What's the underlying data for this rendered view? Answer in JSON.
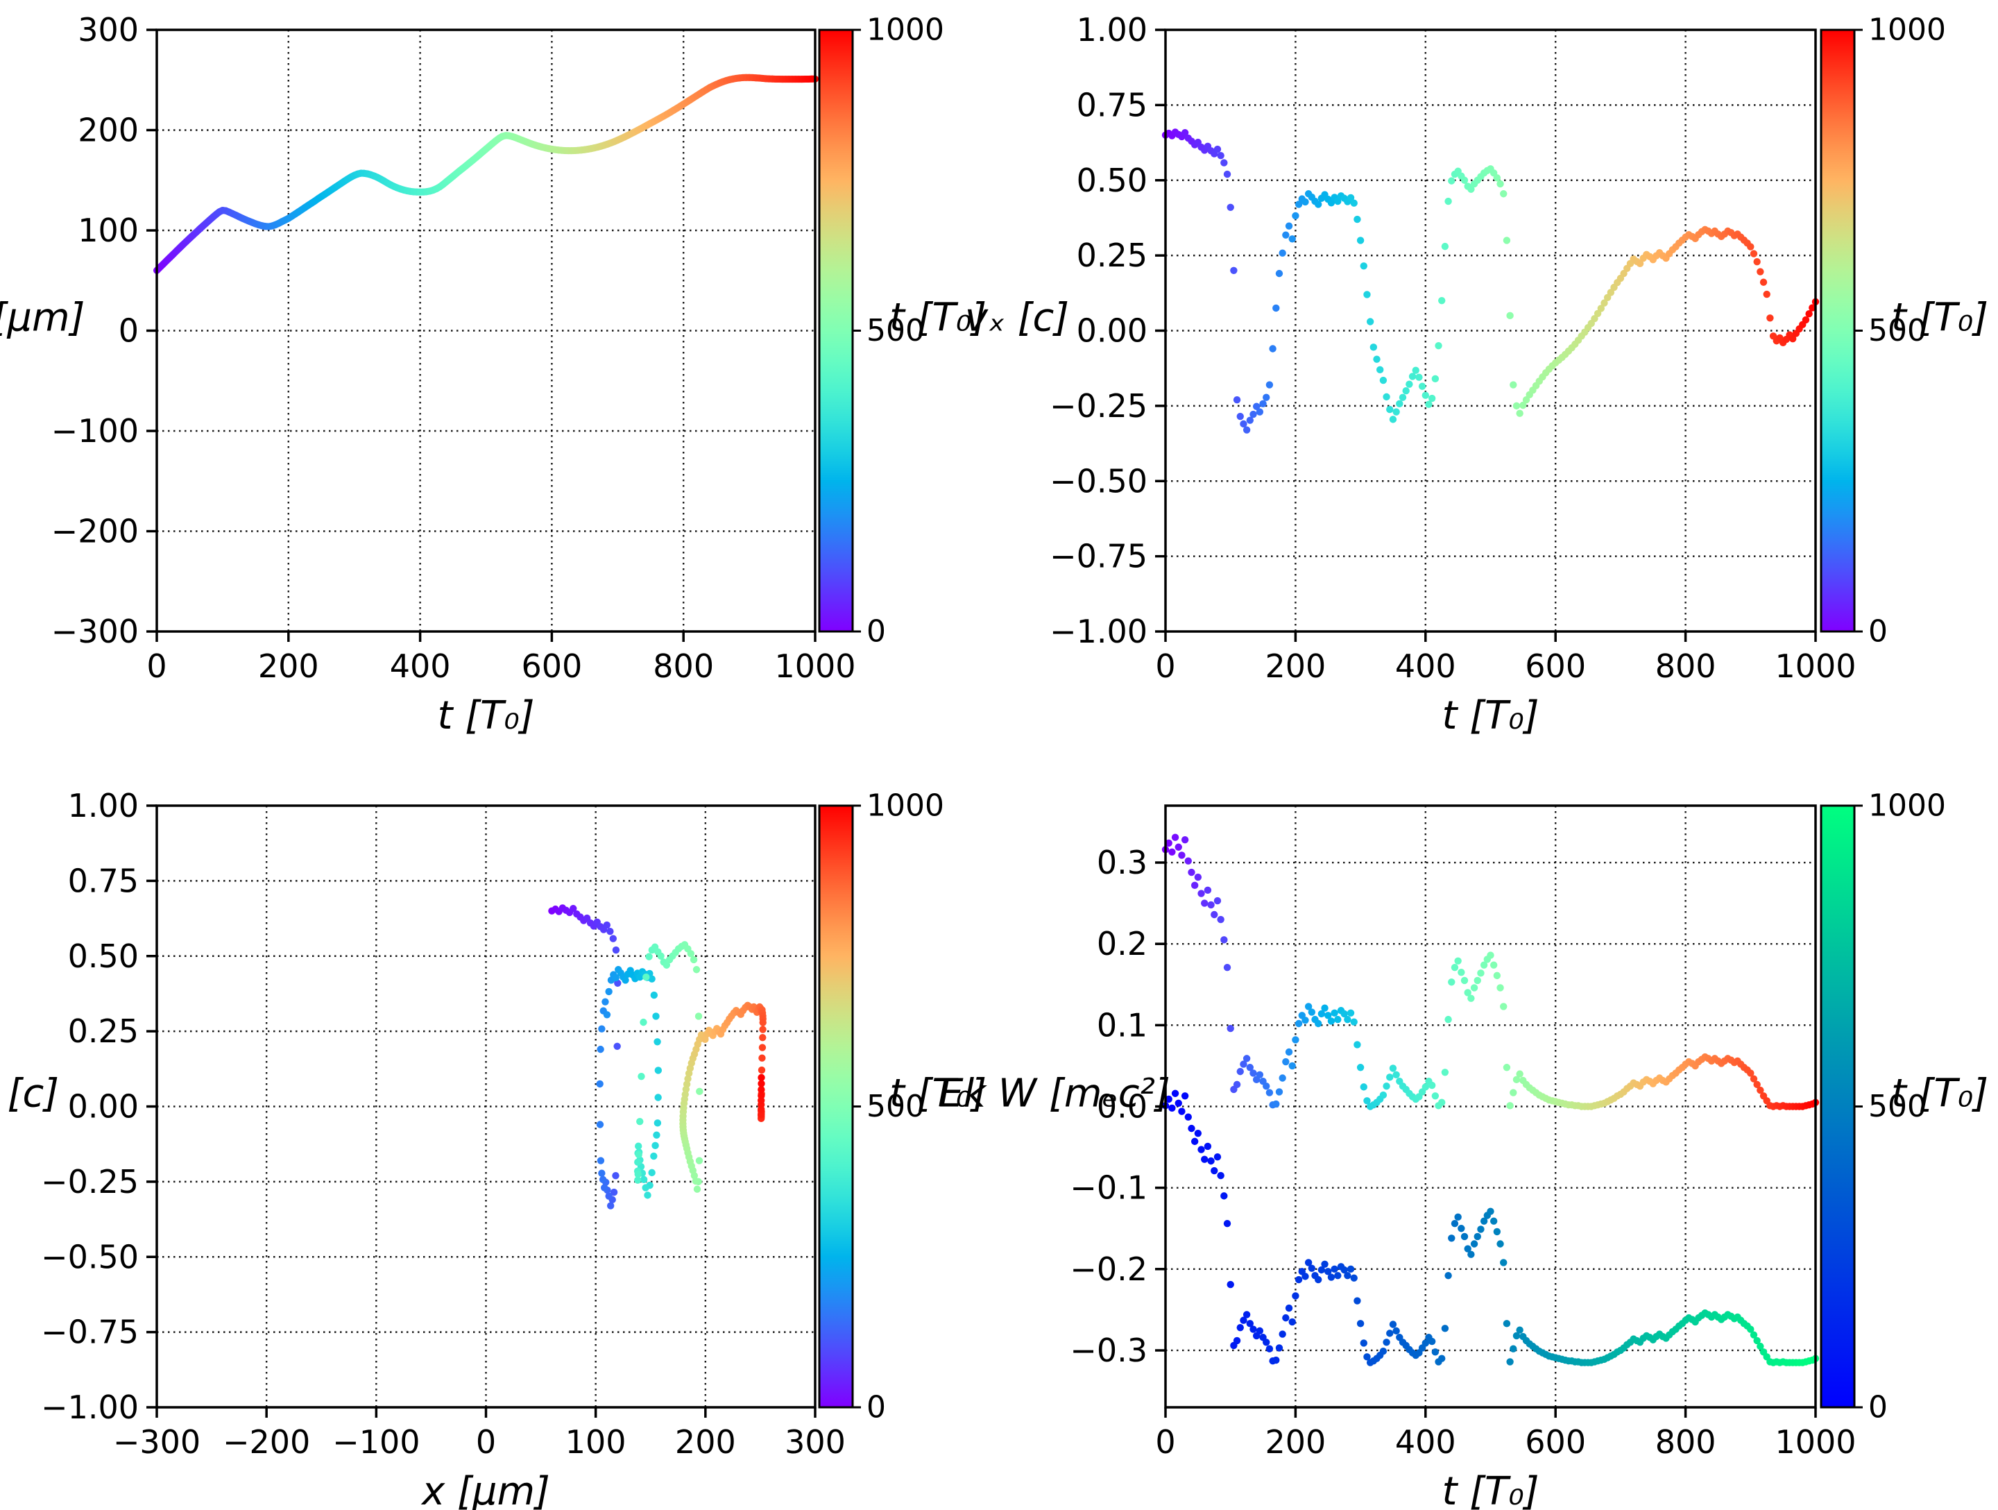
{
  "figure": {
    "background": "#ffffff",
    "spine_color": "#000000",
    "grid_color": "#000000",
    "colormaps": {
      "rainbow_hex_samples": [
        "#8000ff",
        "#1a96f3",
        "#00b4ec",
        "#80ffb4",
        "#e6ce74",
        "#ffb462",
        "#ff4f28",
        "#ff0000"
      ],
      "winter_hex_samples": [
        "#0000ff",
        "#0080bf",
        "#00ff80"
      ]
    }
  },
  "series_data": {
    "t": [
      0,
      5,
      10,
      15,
      20,
      25,
      30,
      35,
      40,
      45,
      50,
      55,
      60,
      65,
      70,
      75,
      80,
      85,
      90,
      95,
      100,
      105,
      110,
      115,
      120,
      125,
      130,
      135,
      140,
      145,
      150,
      155,
      160,
      165,
      170,
      175,
      180,
      185,
      190,
      195,
      200,
      205,
      210,
      215,
      220,
      225,
      230,
      235,
      240,
      245,
      250,
      255,
      260,
      265,
      270,
      275,
      280,
      285,
      290,
      295,
      300,
      305,
      310,
      315,
      320,
      325,
      330,
      335,
      340,
      345,
      350,
      355,
      360,
      365,
      370,
      375,
      380,
      385,
      390,
      395,
      400,
      405,
      410,
      415,
      420,
      425,
      430,
      435,
      440,
      445,
      450,
      455,
      460,
      465,
      470,
      475,
      480,
      485,
      490,
      495,
      500,
      505,
      510,
      515,
      520,
      525,
      530,
      535,
      540,
      545,
      550,
      555,
      560,
      565,
      570,
      575,
      580,
      585,
      590,
      595,
      600,
      605,
      610,
      615,
      620,
      625,
      630,
      635,
      640,
      645,
      650,
      655,
      660,
      665,
      670,
      675,
      680,
      685,
      690,
      695,
      700,
      705,
      710,
      715,
      720,
      725,
      730,
      735,
      740,
      745,
      750,
      755,
      760,
      765,
      770,
      775,
      780,
      785,
      790,
      795,
      800,
      805,
      810,
      815,
      820,
      825,
      830,
      835,
      840,
      845,
      850,
      855,
      860,
      865,
      870,
      875,
      880,
      885,
      890,
      895,
      900,
      905,
      910,
      915,
      920,
      925,
      930,
      935,
      940,
      945,
      950,
      955,
      960,
      965,
      970,
      975,
      980,
      985,
      990,
      995,
      1000
    ],
    "x": [
      60.0,
      63.3,
      66.5,
      69.8,
      73.0,
      76.2,
      79.5,
      82.7,
      85.9,
      89.0,
      92.1,
      95.2,
      98.2,
      101.3,
      104.3,
      107.2,
      110.2,
      113.1,
      115.9,
      118.5,
      120.0,
      119.6,
      118.2,
      116.7,
      115.2,
      113.6,
      112.0,
      110.6,
      109.2,
      107.9,
      106.6,
      105.5,
      104.6,
      104.0,
      103.8,
      104.4,
      105.5,
      107.0,
      108.7,
      110.3,
      112.0,
      114.1,
      116.2,
      118.4,
      120.6,
      122.8,
      125.0,
      127.1,
      129.3,
      131.6,
      133.8,
      135.9,
      138.1,
      140.3,
      142.5,
      144.7,
      146.9,
      149.1,
      151.2,
      153.2,
      154.9,
      156.2,
      157.0,
      156.9,
      156.4,
      155.5,
      154.3,
      152.9,
      151.2,
      149.3,
      147.3,
      145.5,
      143.9,
      142.5,
      141.3,
      140.3,
      139.5,
      138.9,
      138.5,
      138.3,
      138.2,
      138.3,
      138.6,
      139.2,
      140.2,
      141.6,
      143.5,
      145.9,
      148.6,
      151.3,
      154.0,
      156.7,
      159.4,
      162.0,
      164.6,
      167.3,
      170.0,
      172.7,
      175.5,
      178.3,
      181.1,
      183.9,
      186.7,
      189.4,
      191.9,
      193.8,
      194.6,
      194.4,
      193.6,
      192.5,
      191.2,
      189.9,
      188.6,
      187.3,
      186.1,
      185.0,
      184.0,
      183.1,
      182.3,
      181.6,
      181.0,
      180.5,
      180.1,
      179.8,
      179.6,
      179.5,
      179.5,
      179.6,
      179.8,
      180.1,
      180.5,
      181.0,
      181.6,
      182.3,
      183.1,
      184.0,
      185.0,
      186.1,
      187.3,
      188.6,
      190.0,
      191.5,
      193.0,
      194.6,
      196.3,
      198.0,
      199.7,
      201.4,
      203.2,
      205.0,
      206.8,
      208.6,
      210.4,
      212.2,
      214.0,
      215.9,
      217.8,
      219.8,
      221.8,
      223.8,
      225.9,
      228.0,
      230.1,
      232.2,
      234.3,
      236.4,
      238.5,
      240.5,
      242.5,
      244.1,
      245.6,
      247.0,
      248.3,
      249.4,
      250.3,
      251.0,
      251.6,
      252.0,
      252.3,
      252.4,
      252.4,
      252.3,
      252.1,
      251.9,
      251.6,
      251.3,
      251.1,
      251.0,
      250.9,
      250.9,
      250.8,
      250.8,
      250.8,
      250.8,
      250.8,
      250.8,
      250.8,
      250.9,
      250.9,
      251.0,
      251.0
    ],
    "vx": [
      0.65,
      0.656,
      0.648,
      0.66,
      0.652,
      0.645,
      0.658,
      0.64,
      0.63,
      0.618,
      0.626,
      0.61,
      0.6,
      0.613,
      0.598,
      0.588,
      0.603,
      0.582,
      0.558,
      0.52,
      0.41,
      0.2,
      -0.23,
      -0.285,
      -0.31,
      -0.33,
      -0.298,
      -0.278,
      -0.252,
      -0.27,
      -0.243,
      -0.222,
      -0.18,
      -0.06,
      0.075,
      0.19,
      0.258,
      0.318,
      0.348,
      0.305,
      0.382,
      0.42,
      0.438,
      0.428,
      0.455,
      0.444,
      0.43,
      0.42,
      0.44,
      0.452,
      0.437,
      0.425,
      0.443,
      0.43,
      0.448,
      0.44,
      0.429,
      0.442,
      0.424,
      0.37,
      0.3,
      0.215,
      0.12,
      0.03,
      -0.055,
      -0.095,
      -0.13,
      -0.165,
      -0.22,
      -0.262,
      -0.295,
      -0.27,
      -0.243,
      -0.222,
      -0.2,
      -0.178,
      -0.152,
      -0.132,
      -0.155,
      -0.185,
      -0.215,
      -0.245,
      -0.225,
      -0.16,
      -0.05,
      0.1,
      0.28,
      0.43,
      0.498,
      0.52,
      0.53,
      0.514,
      0.5,
      0.48,
      0.47,
      0.488,
      0.5,
      0.512,
      0.524,
      0.532,
      0.538,
      0.524,
      0.508,
      0.488,
      0.455,
      0.3,
      0.05,
      -0.18,
      -0.25,
      -0.275,
      -0.248,
      -0.23,
      -0.213,
      -0.198,
      -0.183,
      -0.168,
      -0.154,
      -0.14,
      -0.128,
      -0.117,
      -0.107,
      -0.098,
      -0.089,
      -0.079,
      -0.068,
      -0.057,
      -0.045,
      -0.032,
      -0.018,
      -0.005,
      0.01,
      0.024,
      0.04,
      0.057,
      0.074,
      0.092,
      0.11,
      0.127,
      0.144,
      0.16,
      0.174,
      0.19,
      0.207,
      0.223,
      0.238,
      0.23,
      0.223,
      0.241,
      0.253,
      0.246,
      0.236,
      0.249,
      0.259,
      0.249,
      0.241,
      0.256,
      0.269,
      0.279,
      0.291,
      0.301,
      0.311,
      0.319,
      0.313,
      0.306,
      0.319,
      0.329,
      0.336,
      0.331,
      0.323,
      0.331,
      0.321,
      0.313,
      0.321,
      0.331,
      0.326,
      0.316,
      0.321,
      0.311,
      0.301,
      0.291,
      0.279,
      0.256,
      0.229,
      0.196,
      0.161,
      0.121,
      0.042,
      -0.018,
      -0.034,
      -0.024,
      -0.04,
      -0.029,
      -0.014,
      -0.027,
      -0.009,
      0.006,
      0.02,
      0.036,
      0.056,
      0.076,
      0.096
    ],
    "ek": [
      0.316,
      0.324,
      0.313,
      0.331,
      0.319,
      0.309,
      0.328,
      0.302,
      0.288,
      0.272,
      0.282,
      0.262,
      0.25,
      0.266,
      0.248,
      0.236,
      0.253,
      0.23,
      0.205,
      0.171,
      0.096,
      0.021,
      0.027,
      0.043,
      0.052,
      0.059,
      0.048,
      0.041,
      0.033,
      0.039,
      0.031,
      0.025,
      0.017,
      0.002,
      0.003,
      0.018,
      0.035,
      0.055,
      0.067,
      0.05,
      0.082,
      0.102,
      0.112,
      0.106,
      0.123,
      0.116,
      0.107,
      0.102,
      0.114,
      0.121,
      0.112,
      0.105,
      0.115,
      0.107,
      0.118,
      0.114,
      0.107,
      0.115,
      0.104,
      0.076,
      0.048,
      0.024,
      0.007,
      0.0,
      0.002,
      0.005,
      0.009,
      0.014,
      0.025,
      0.036,
      0.047,
      0.039,
      0.031,
      0.025,
      0.021,
      0.016,
      0.012,
      0.009,
      0.012,
      0.018,
      0.024,
      0.031,
      0.026,
      0.013,
      0.001,
      0.005,
      0.042,
      0.107,
      0.153,
      0.171,
      0.179,
      0.165,
      0.155,
      0.14,
      0.133,
      0.146,
      0.155,
      0.164,
      0.174,
      0.181,
      0.186,
      0.174,
      0.161,
      0.146,
      0.123,
      0.048,
      0.001,
      0.017,
      0.033,
      0.04,
      0.032,
      0.027,
      0.023,
      0.02,
      0.017,
      0.014,
      0.012,
      0.01,
      0.008,
      0.007,
      0.006,
      0.005,
      0.004,
      0.003,
      0.002,
      0.002,
      0.001,
      0.001,
      0.0,
      0.0,
      0.0,
      0.0,
      0.001,
      0.002,
      0.003,
      0.004,
      0.006,
      0.008,
      0.01,
      0.013,
      0.015,
      0.018,
      0.022,
      0.025,
      0.029,
      0.027,
      0.025,
      0.03,
      0.033,
      0.031,
      0.028,
      0.032,
      0.035,
      0.032,
      0.03,
      0.034,
      0.038,
      0.041,
      0.045,
      0.048,
      0.052,
      0.055,
      0.053,
      0.05,
      0.055,
      0.058,
      0.061,
      0.059,
      0.056,
      0.059,
      0.056,
      0.053,
      0.056,
      0.059,
      0.057,
      0.054,
      0.056,
      0.052,
      0.048,
      0.045,
      0.041,
      0.034,
      0.027,
      0.02,
      0.013,
      0.007,
      0.001,
      0.0,
      0.001,
      0.0,
      0.001,
      0.0,
      0.0,
      0.0,
      0.0,
      0.0,
      0.0,
      0.001,
      0.002,
      0.003,
      0.005
    ],
    "w": [
      0.001,
      0.009,
      -0.002,
      0.016,
      0.004,
      -0.006,
      0.013,
      -0.013,
      -0.027,
      -0.043,
      -0.033,
      -0.053,
      -0.065,
      -0.049,
      -0.067,
      -0.079,
      -0.062,
      -0.085,
      -0.11,
      -0.144,
      -0.219,
      -0.294,
      -0.288,
      -0.272,
      -0.263,
      -0.256,
      -0.267,
      -0.274,
      -0.282,
      -0.276,
      -0.284,
      -0.29,
      -0.298,
      -0.313,
      -0.312,
      -0.297,
      -0.28,
      -0.26,
      -0.248,
      -0.265,
      -0.233,
      -0.213,
      -0.203,
      -0.209,
      -0.192,
      -0.199,
      -0.208,
      -0.213,
      -0.201,
      -0.194,
      -0.203,
      -0.21,
      -0.2,
      -0.208,
      -0.197,
      -0.201,
      -0.208,
      -0.2,
      -0.211,
      -0.239,
      -0.267,
      -0.291,
      -0.308,
      -0.315,
      -0.313,
      -0.31,
      -0.306,
      -0.301,
      -0.29,
      -0.279,
      -0.268,
      -0.276,
      -0.284,
      -0.29,
      -0.294,
      -0.299,
      -0.303,
      -0.306,
      -0.303,
      -0.297,
      -0.291,
      -0.284,
      -0.289,
      -0.302,
      -0.314,
      -0.31,
      -0.273,
      -0.208,
      -0.162,
      -0.144,
      -0.136,
      -0.15,
      -0.16,
      -0.175,
      -0.182,
      -0.169,
      -0.16,
      -0.151,
      -0.141,
      -0.134,
      -0.129,
      -0.141,
      -0.154,
      -0.169,
      -0.192,
      -0.267,
      -0.314,
      -0.298,
      -0.282,
      -0.275,
      -0.283,
      -0.288,
      -0.292,
      -0.295,
      -0.298,
      -0.301,
      -0.303,
      -0.305,
      -0.307,
      -0.308,
      -0.309,
      -0.31,
      -0.311,
      -0.312,
      -0.313,
      -0.313,
      -0.314,
      -0.314,
      -0.315,
      -0.315,
      -0.315,
      -0.315,
      -0.314,
      -0.313,
      -0.312,
      -0.311,
      -0.309,
      -0.307,
      -0.305,
      -0.302,
      -0.3,
      -0.297,
      -0.293,
      -0.29,
      -0.286,
      -0.288,
      -0.29,
      -0.285,
      -0.282,
      -0.284,
      -0.287,
      -0.283,
      -0.28,
      -0.283,
      -0.285,
      -0.281,
      -0.277,
      -0.274,
      -0.27,
      -0.267,
      -0.263,
      -0.26,
      -0.262,
      -0.265,
      -0.26,
      -0.257,
      -0.254,
      -0.256,
      -0.259,
      -0.256,
      -0.259,
      -0.262,
      -0.259,
      -0.256,
      -0.258,
      -0.261,
      -0.259,
      -0.263,
      -0.267,
      -0.27,
      -0.274,
      -0.281,
      -0.288,
      -0.295,
      -0.302,
      -0.308,
      -0.314,
      -0.315,
      -0.314,
      -0.315,
      -0.314,
      -0.315,
      -0.315,
      -0.315,
      -0.315,
      -0.315,
      -0.315,
      -0.314,
      -0.313,
      -0.312,
      -0.31
    ]
  },
  "chart_data": [
    {
      "id": "x-vs-t",
      "type": "line",
      "x_key": "t",
      "y_key": "x",
      "color_key": "t",
      "colormap": "rainbow",
      "xlabel": "t [T₀]",
      "ylabel": "x [μm]",
      "xlim": [
        0,
        1000
      ],
      "ylim": [
        -300,
        300
      ],
      "xticks": [
        0,
        200,
        400,
        600,
        800,
        1000
      ],
      "xtick_labels": [
        "0",
        "200",
        "400",
        "600",
        "800",
        "1000"
      ],
      "yticks": [
        -300,
        -200,
        -100,
        0,
        100,
        200,
        300
      ],
      "ytick_labels": [
        "−300",
        "−200",
        "−100",
        "0",
        "100",
        "200",
        "300"
      ],
      "grid": true,
      "colorbar": {
        "label": "t [T₀]",
        "lim": [
          0,
          1000
        ],
        "ticks": [
          0,
          500,
          1000
        ],
        "tick_labels": [
          "0",
          "500",
          "1000"
        ],
        "colormap": "rainbow"
      }
    },
    {
      "id": "vx-vs-t",
      "type": "scatter",
      "x_key": "t",
      "y_key": "vx",
      "color_key": "t",
      "colormap": "rainbow",
      "xlabel": "t [T₀]",
      "ylabel": "vₓ [c]",
      "xlim": [
        0,
        1000
      ],
      "ylim": [
        -1.0,
        1.0
      ],
      "xticks": [
        0,
        200,
        400,
        600,
        800,
        1000
      ],
      "xtick_labels": [
        "0",
        "200",
        "400",
        "600",
        "800",
        "1000"
      ],
      "yticks": [
        -1.0,
        -0.75,
        -0.5,
        -0.25,
        0.0,
        0.25,
        0.5,
        0.75,
        1.0
      ],
      "ytick_labels": [
        "−1.00",
        "−0.75",
        "−0.50",
        "−0.25",
        "0.00",
        "0.25",
        "0.50",
        "0.75",
        "1.00"
      ],
      "grid": true,
      "colorbar": {
        "label": "t [T₀]",
        "lim": [
          0,
          1000
        ],
        "ticks": [
          0,
          500,
          1000
        ],
        "tick_labels": [
          "0",
          "500",
          "1000"
        ],
        "colormap": "rainbow"
      }
    },
    {
      "id": "vx-vs-x",
      "type": "scatter",
      "x_key": "x",
      "y_key": "vx",
      "color_key": "t",
      "colormap": "rainbow",
      "xlabel": "x [μm]",
      "ylabel": "vₓ [c]",
      "xlim": [
        -300,
        300
      ],
      "ylim": [
        -1.0,
        1.0
      ],
      "xticks": [
        -300,
        -200,
        -100,
        0,
        100,
        200,
        300
      ],
      "xtick_labels": [
        "−300",
        "−200",
        "−100",
        "0",
        "100",
        "200",
        "300"
      ],
      "yticks": [
        -1.0,
        -0.75,
        -0.5,
        -0.25,
        0.0,
        0.25,
        0.5,
        0.75,
        1.0
      ],
      "ytick_labels": [
        "−1.00",
        "−0.75",
        "−0.50",
        "−0.25",
        "0.00",
        "0.25",
        "0.50",
        "0.75",
        "1.00"
      ],
      "grid": true,
      "colorbar": {
        "label": "t [T₀]",
        "lim": [
          0,
          1000
        ],
        "ticks": [
          0,
          500,
          1000
        ],
        "tick_labels": [
          "0",
          "500",
          "1000"
        ],
        "colormap": "rainbow"
      }
    },
    {
      "id": "ek-w-vs-t",
      "type": "scatter",
      "x_key": "t",
      "color_key": "t",
      "series": [
        {
          "name": "Ek",
          "y_key": "ek",
          "colormap": "rainbow"
        },
        {
          "name": "W",
          "y_key": "w",
          "colormap": "winter"
        }
      ],
      "xlabel": "t [T₀]",
      "ylabel": "Ek W [mₑc²]",
      "xlim": [
        0,
        1000
      ],
      "ylim": [
        -0.37,
        0.37
      ],
      "xticks": [
        0,
        200,
        400,
        600,
        800,
        1000
      ],
      "xtick_labels": [
        "0",
        "200",
        "400",
        "600",
        "800",
        "1000"
      ],
      "yticks": [
        -0.3,
        -0.2,
        -0.1,
        0.0,
        0.1,
        0.2,
        0.3
      ],
      "ytick_labels": [
        "−0.3",
        "−0.2",
        "−0.1",
        "0.0",
        "0.1",
        "0.2",
        "0.3"
      ],
      "grid": true,
      "colorbar": {
        "label": "t [T₀]",
        "lim": [
          0,
          1000
        ],
        "ticks": [
          0,
          500,
          1000
        ],
        "tick_labels": [
          "0",
          "500",
          "1000"
        ],
        "colormap": "winter"
      }
    }
  ]
}
